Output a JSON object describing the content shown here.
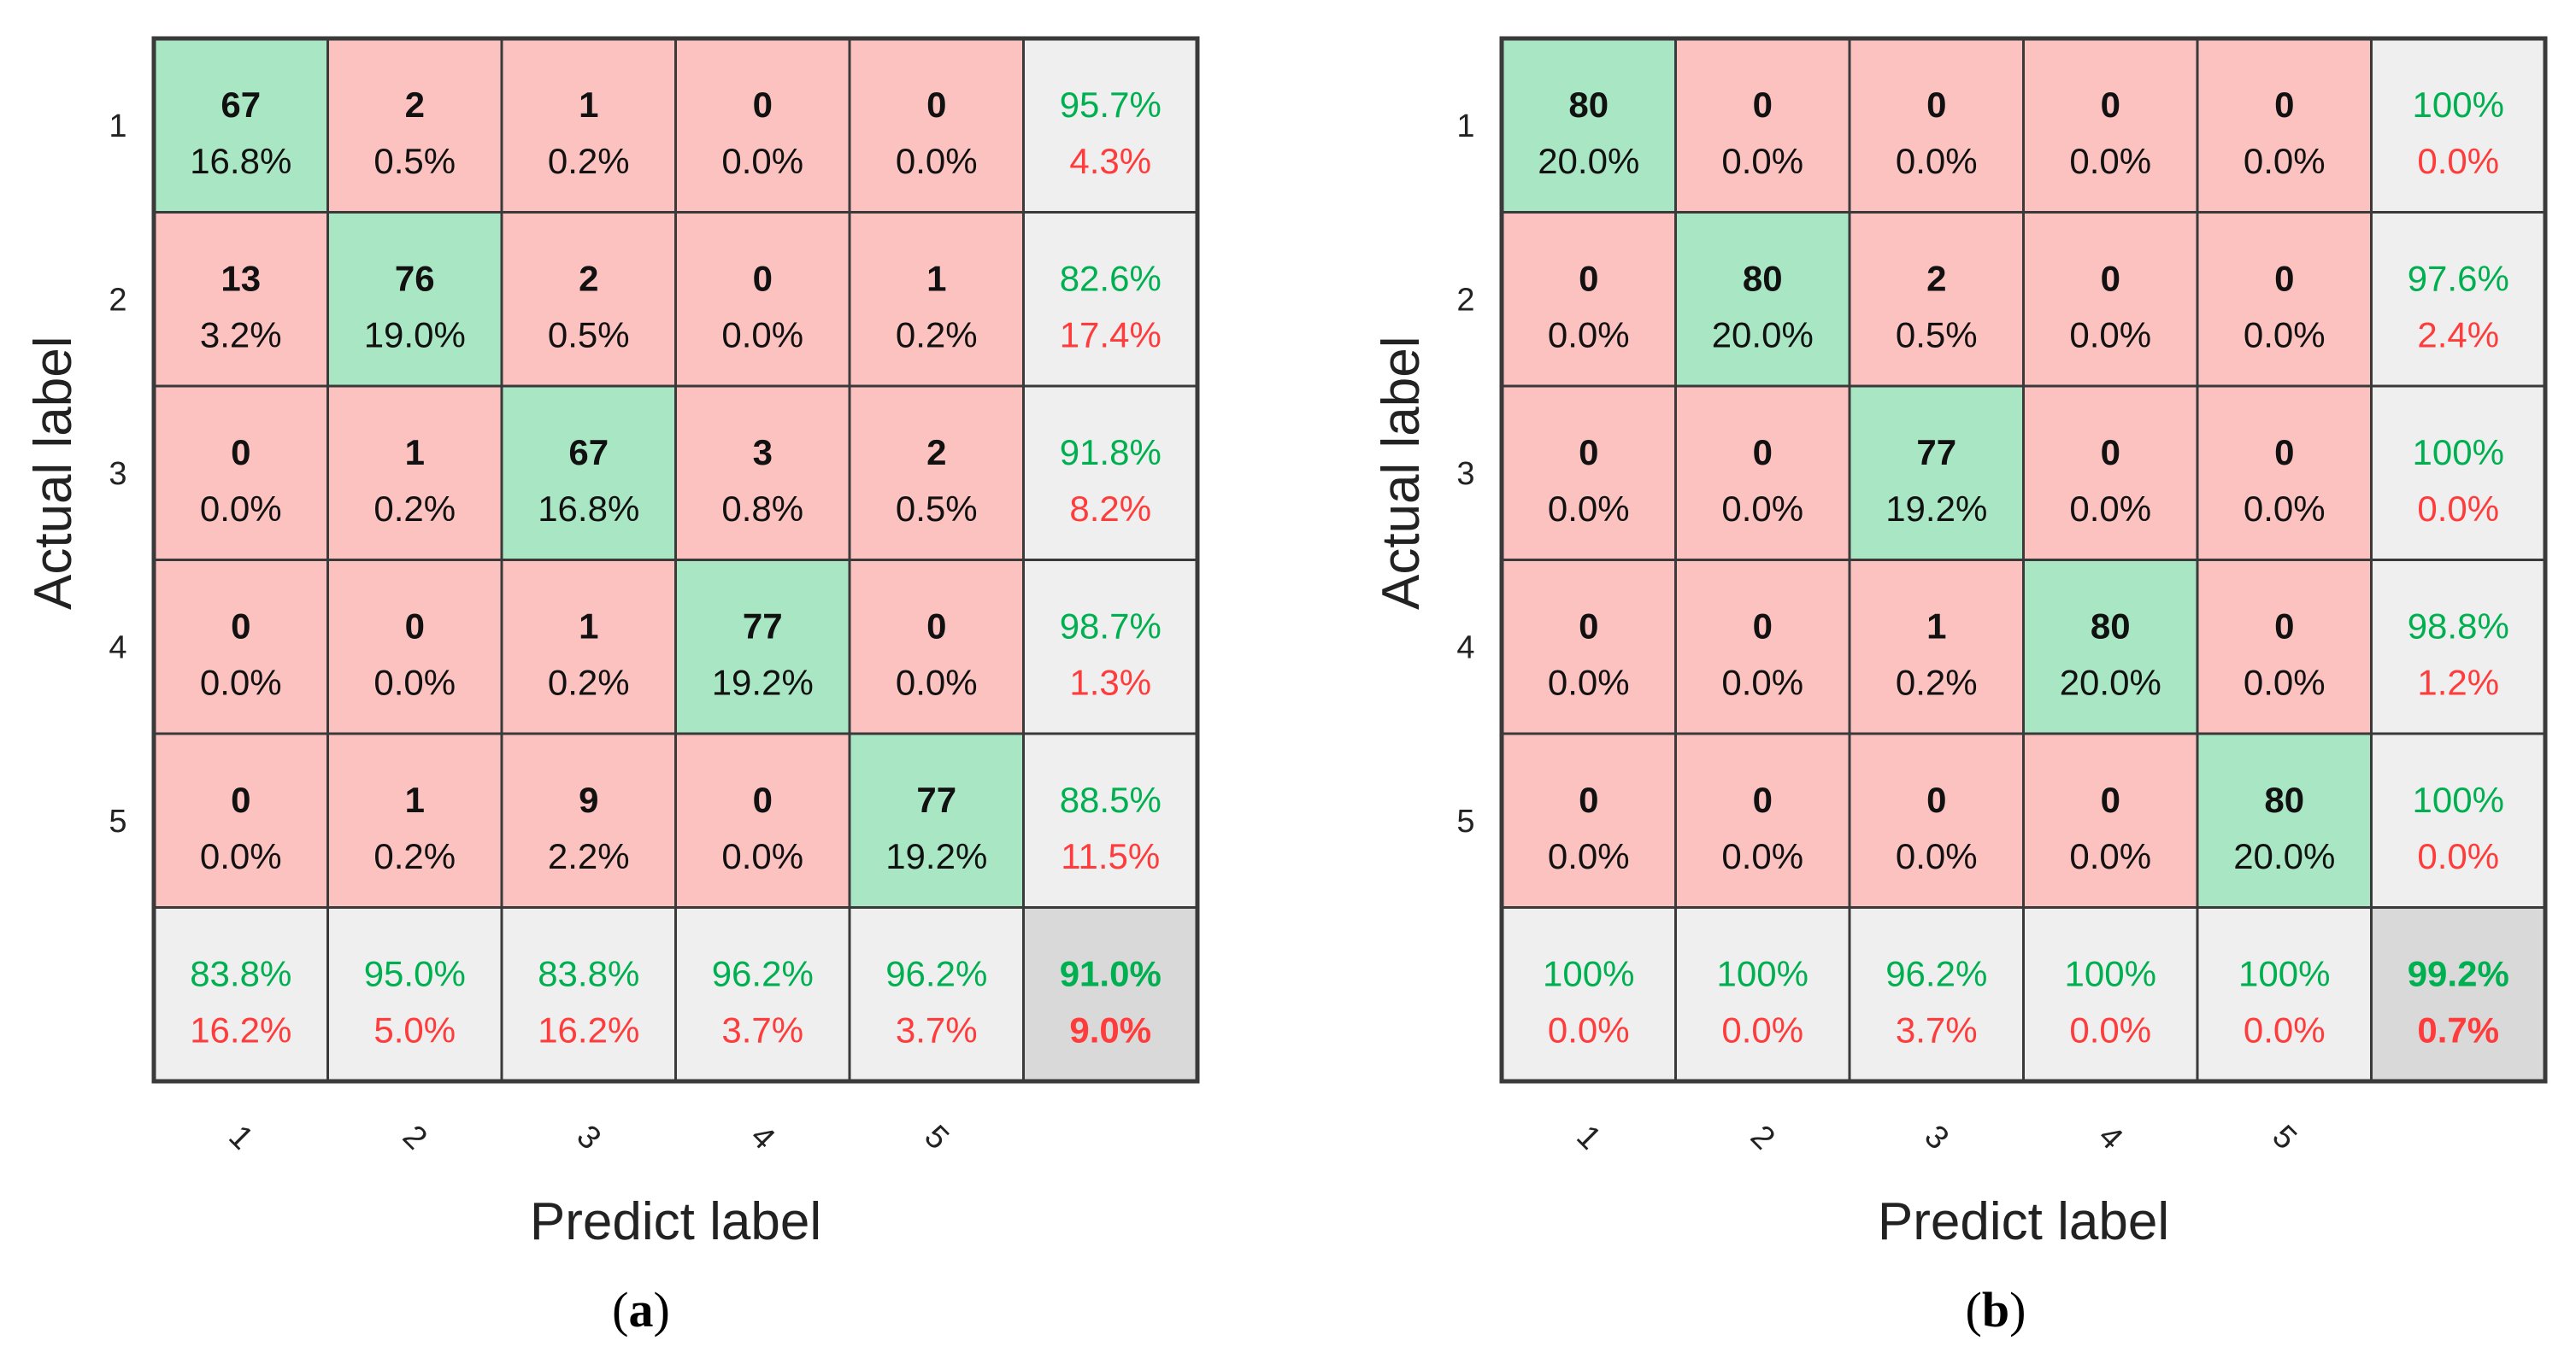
{
  "colors": {
    "correct": "#a8e6c4",
    "error": "#fbc2c0",
    "summary": "#efefef",
    "overall": "#d9d9d9",
    "green_text": "#00b050",
    "red_text": "#ff3c3c",
    "grid": "#3a3a3a"
  },
  "chart_data": [
    {
      "type": "heatmap",
      "panel": "a",
      "caption_letter": "a",
      "xlabel": "Predict label",
      "ylabel": "Actual label",
      "row_labels": [
        "1",
        "2",
        "3",
        "4",
        "5"
      ],
      "col_labels": [
        "1",
        "2",
        "3",
        "4",
        "5"
      ],
      "counts": [
        [
          67,
          2,
          1,
          0,
          0
        ],
        [
          13,
          76,
          2,
          0,
          1
        ],
        [
          0,
          1,
          67,
          3,
          2
        ],
        [
          0,
          0,
          1,
          77,
          0
        ],
        [
          0,
          1,
          9,
          0,
          77
        ]
      ],
      "percents": [
        [
          "16.8%",
          "0.5%",
          "0.2%",
          "0.0%",
          "0.0%"
        ],
        [
          "3.2%",
          "19.0%",
          "0.5%",
          "0.0%",
          "0.2%"
        ],
        [
          "0.0%",
          "0.2%",
          "16.8%",
          "0.8%",
          "0.5%"
        ],
        [
          "0.0%",
          "0.0%",
          "0.2%",
          "19.2%",
          "0.0%"
        ],
        [
          "0.0%",
          "0.2%",
          "2.2%",
          "0.0%",
          "19.2%"
        ]
      ],
      "row_summary": [
        [
          "95.7%",
          "4.3%"
        ],
        [
          "82.6%",
          "17.4%"
        ],
        [
          "91.8%",
          "8.2%"
        ],
        [
          "98.7%",
          "1.3%"
        ],
        [
          "88.5%",
          "11.5%"
        ]
      ],
      "col_summary": [
        [
          "83.8%",
          "16.2%"
        ],
        [
          "95.0%",
          "5.0%"
        ],
        [
          "83.8%",
          "16.2%"
        ],
        [
          "96.2%",
          "3.7%"
        ],
        [
          "96.2%",
          "3.7%"
        ]
      ],
      "overall": [
        "91.0%",
        "9.0%"
      ]
    },
    {
      "type": "heatmap",
      "panel": "b",
      "caption_letter": "b",
      "xlabel": "Predict label",
      "ylabel": "Actual label",
      "row_labels": [
        "1",
        "2",
        "3",
        "4",
        "5"
      ],
      "col_labels": [
        "1",
        "2",
        "3",
        "4",
        "5"
      ],
      "counts": [
        [
          80,
          0,
          0,
          0,
          0
        ],
        [
          0,
          80,
          2,
          0,
          0
        ],
        [
          0,
          0,
          77,
          0,
          0
        ],
        [
          0,
          0,
          1,
          80,
          0
        ],
        [
          0,
          0,
          0,
          0,
          80
        ]
      ],
      "percents": [
        [
          "20.0%",
          "0.0%",
          "0.0%",
          "0.0%",
          "0.0%"
        ],
        [
          "0.0%",
          "20.0%",
          "0.5%",
          "0.0%",
          "0.0%"
        ],
        [
          "0.0%",
          "0.0%",
          "19.2%",
          "0.0%",
          "0.0%"
        ],
        [
          "0.0%",
          "0.0%",
          "0.2%",
          "20.0%",
          "0.0%"
        ],
        [
          "0.0%",
          "0.0%",
          "0.0%",
          "0.0%",
          "20.0%"
        ]
      ],
      "row_summary": [
        [
          "100%",
          "0.0%"
        ],
        [
          "97.6%",
          "2.4%"
        ],
        [
          "100%",
          "0.0%"
        ],
        [
          "98.8%",
          "1.2%"
        ],
        [
          "100%",
          "0.0%"
        ]
      ],
      "col_summary": [
        [
          "100%",
          "0.0%"
        ],
        [
          "100%",
          "0.0%"
        ],
        [
          "96.2%",
          "3.7%"
        ],
        [
          "100%",
          "0.0%"
        ],
        [
          "100%",
          "0.0%"
        ]
      ],
      "overall": [
        "99.2%",
        "0.7%"
      ]
    }
  ]
}
